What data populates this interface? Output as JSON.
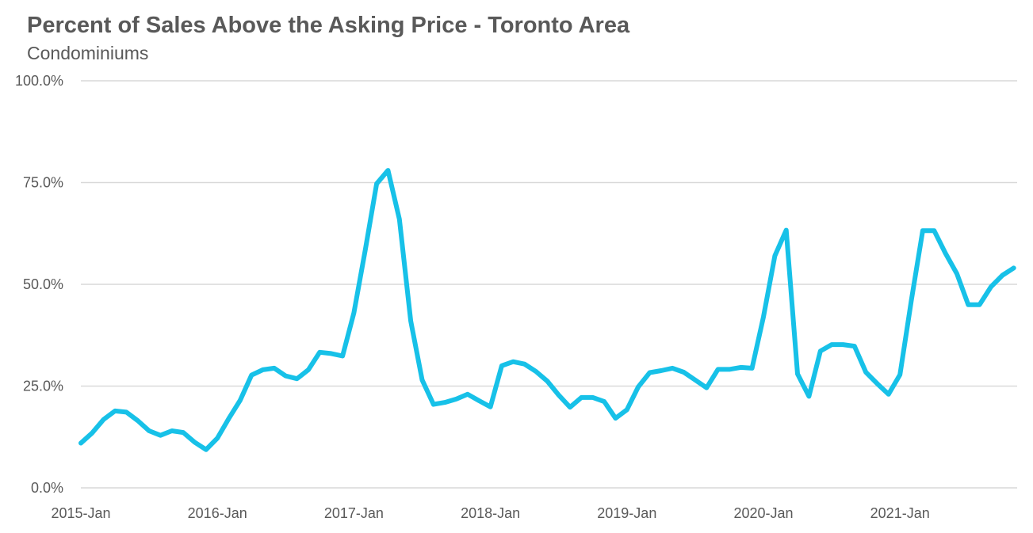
{
  "chart_data": {
    "type": "line",
    "title": "Percent of Sales Above the Asking Price - Toronto Area",
    "subtitle": "Condominiums",
    "ylim": [
      0,
      100
    ],
    "y_ticks": [
      {
        "value": 0,
        "label": "0.0%"
      },
      {
        "value": 25,
        "label": "25.0%"
      },
      {
        "value": 50,
        "label": "50.0%"
      },
      {
        "value": 75,
        "label": "75.0%"
      },
      {
        "value": 100,
        "label": "100.0%"
      }
    ],
    "x_ticks": [
      {
        "index": 0,
        "label": "2015-Jan"
      },
      {
        "index": 12,
        "label": "2016-Jan"
      },
      {
        "index": 24,
        "label": "2017-Jan"
      },
      {
        "index": 36,
        "label": "2018-Jan"
      },
      {
        "index": 48,
        "label": "2019-Jan"
      },
      {
        "index": 60,
        "label": "2020-Jan"
      },
      {
        "index": 72,
        "label": "2021-Jan"
      }
    ],
    "grid": true,
    "legend": "none",
    "color": "#17c1e8",
    "series": [
      {
        "values": [
          11.0,
          13.5,
          16.8,
          18.9,
          18.6,
          16.5,
          14.0,
          12.9,
          14.0,
          13.6,
          11.2,
          9.4,
          12.2,
          17.0,
          21.5,
          27.7,
          29.0,
          29.4,
          27.5,
          26.8,
          29.0,
          33.3,
          33.0,
          32.4,
          43.0,
          58.5,
          74.7,
          78.0,
          66.0,
          41.0,
          26.5,
          20.5,
          21.0,
          21.8,
          23.0,
          21.4,
          19.9,
          30.0,
          31.0,
          30.4,
          28.6,
          26.2,
          22.8,
          19.8,
          22.2,
          22.2,
          21.2,
          17.1,
          19.2,
          24.8,
          28.3,
          28.8,
          29.4,
          28.4,
          26.5,
          24.6,
          29.1,
          29.1,
          29.6,
          29.4,
          42.0,
          57.0,
          63.3,
          28.0,
          22.5,
          33.6,
          35.2,
          35.2,
          34.8,
          28.4,
          25.6,
          23.0,
          27.8,
          46.0,
          63.2,
          63.2,
          57.6,
          52.6,
          45.0,
          45.0,
          49.4,
          52.2,
          54.0
        ]
      }
    ]
  }
}
